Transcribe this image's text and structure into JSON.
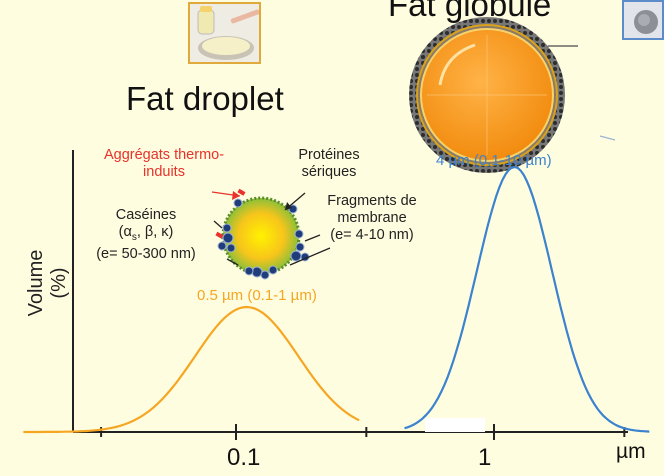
{
  "titles": {
    "fat_droplet": "Fat droplet",
    "fat_globule": "Fat globule"
  },
  "labels": {
    "aggregates": [
      "Aggrégats thermo-",
      "induits"
    ],
    "whey": [
      "Protéines",
      "sériques"
    ],
    "membrane": [
      "Fragments de",
      "membrane",
      "(e= 4-10 nm)"
    ],
    "caseins": [
      "Caséines",
      "(αs, β, κ)",
      "(e= 50-300 nm)"
    ],
    "droplet_size": "0.5 µm (0.1-1 µm)",
    "globule_size": "4 µm (0,1-10 µm)"
  },
  "chart_data": {
    "type": "line",
    "x_scale": "log",
    "ylabel": "Volume (%)",
    "xunit": "µm",
    "ticks": [
      "0.1",
      "1"
    ],
    "series": [
      {
        "color": "#f5a623",
        "x": [
          0.015,
          0.05,
          0.08,
          0.11,
          0.15,
          0.22,
          0.3
        ],
        "y": [
          0,
          8,
          75,
          100,
          75,
          8,
          0
        ]
      },
      {
        "color": "#3c83cf",
        "x": [
          0.45,
          0.8,
          1.0,
          1.2,
          1.5,
          2.5,
          4.0
        ],
        "y": [
          0,
          30,
          85,
          100,
          70,
          10,
          0
        ]
      }
    ]
  },
  "colors": {
    "background": "#fffde0",
    "orange": "#f5a623",
    "blue": "#3c83cf",
    "red": "#e8322a"
  }
}
